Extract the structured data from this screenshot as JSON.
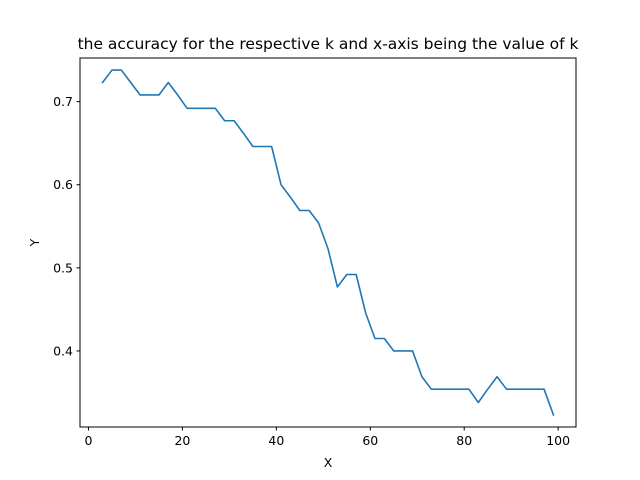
{
  "chart_data": {
    "type": "line",
    "title": "the accuracy for the respective k and x-axis being the value of k",
    "xlabel": "X",
    "ylabel": "Y",
    "xlim": [
      -1.8,
      103.8
    ],
    "ylim": [
      0.3085,
      0.7525
    ],
    "xticks": [
      0,
      20,
      40,
      60,
      80,
      100
    ],
    "yticks": [
      0.4,
      0.5,
      0.6,
      0.7
    ],
    "xtick_labels": [
      "0",
      "20",
      "40",
      "60",
      "80",
      "100"
    ],
    "ytick_labels": [
      "0.4",
      "0.5",
      "0.6",
      "0.7"
    ],
    "grid": false,
    "series": [
      {
        "color": "#1f77b4",
        "x": [
          3,
          5,
          7,
          9,
          11,
          13,
          15,
          17,
          19,
          21,
          23,
          25,
          27,
          29,
          31,
          33,
          35,
          37,
          39,
          41,
          43,
          45,
          47,
          49,
          51,
          53,
          55,
          57,
          59,
          61,
          63,
          65,
          67,
          69,
          71,
          73,
          75,
          77,
          79,
          81,
          83,
          85,
          87,
          89,
          91,
          93,
          95,
          97,
          99
        ],
        "y": [
          0.723,
          0.738,
          0.738,
          0.723,
          0.708,
          0.708,
          0.708,
          0.723,
          0.708,
          0.692,
          0.692,
          0.692,
          0.692,
          0.677,
          0.677,
          0.662,
          0.646,
          0.646,
          0.646,
          0.6,
          0.585,
          0.569,
          0.569,
          0.554,
          0.523,
          0.477,
          0.492,
          0.492,
          0.446,
          0.415,
          0.415,
          0.4,
          0.4,
          0.4,
          0.369,
          0.354,
          0.354,
          0.354,
          0.354,
          0.354,
          0.338,
          0.354,
          0.369,
          0.354,
          0.354,
          0.354,
          0.354,
          0.354,
          0.323
        ]
      }
    ]
  }
}
